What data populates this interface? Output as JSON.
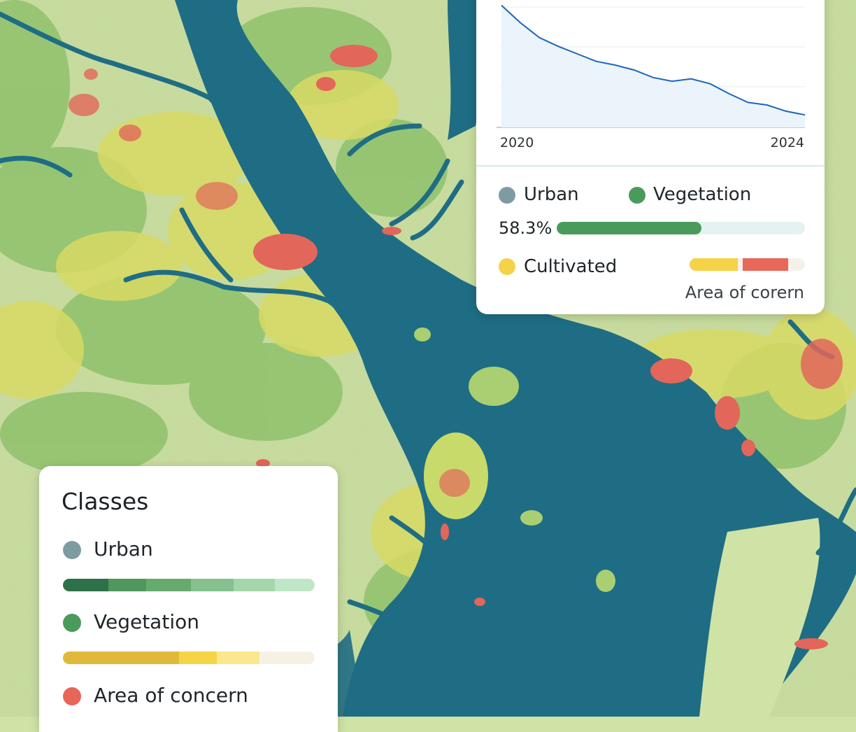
{
  "trend_chart": {
    "type": "line",
    "x_start_label": "2020",
    "x_end_label": "2024",
    "ylim": [
      0,
      100
    ],
    "x": [
      2020.0,
      2020.25,
      2020.5,
      2020.75,
      2021.0,
      2021.25,
      2021.5,
      2021.75,
      2022.0,
      2022.25,
      2022.5,
      2022.75,
      2023.0,
      2023.25,
      2023.5,
      2023.75,
      2024.0
    ],
    "values": [
      98,
      84,
      72,
      65,
      59,
      53,
      50,
      46,
      40,
      37,
      39,
      35,
      27,
      20,
      18,
      13,
      10
    ],
    "line_color": "#1f66b8"
  },
  "summary": {
    "urban_label": "Urban",
    "vegetation_label": "Vegetation",
    "vegetation_percent_label": "58.3%",
    "vegetation_fraction": 0.583,
    "cultivated_label": "Cultivated",
    "area_of_concern_label": "Area of corern",
    "colors": {
      "urban": "#7e9ba2",
      "vegetation": "#4a9a5c",
      "cultivated": "#f6d248",
      "concern": "#e8685a",
      "track": "#e4f2f2"
    }
  },
  "legend": {
    "title": "Classes",
    "items": [
      {
        "label": "Urban",
        "color": "#7e9ba2"
      },
      {
        "label": "Vegetation",
        "color": "#4a9a5c"
      },
      {
        "label": "Area of concern",
        "color": "#e8655a"
      }
    ],
    "green_ramp": [
      "#2e7048",
      "#4f985d",
      "#66aa6e",
      "#85c08e",
      "#a4d6aa",
      "#bfe6c7"
    ],
    "yellow_ramp": [
      "#e0b93a",
      "#f6d447",
      "#fbe78d",
      "#f6f2e3"
    ]
  },
  "map": {
    "water_color": "#1f6d84",
    "land_color": "#cfe3a6",
    "vegetation_color": "#88bf62",
    "cultivated_color": "#e3e15e",
    "concern_color": "#e2665a"
  }
}
